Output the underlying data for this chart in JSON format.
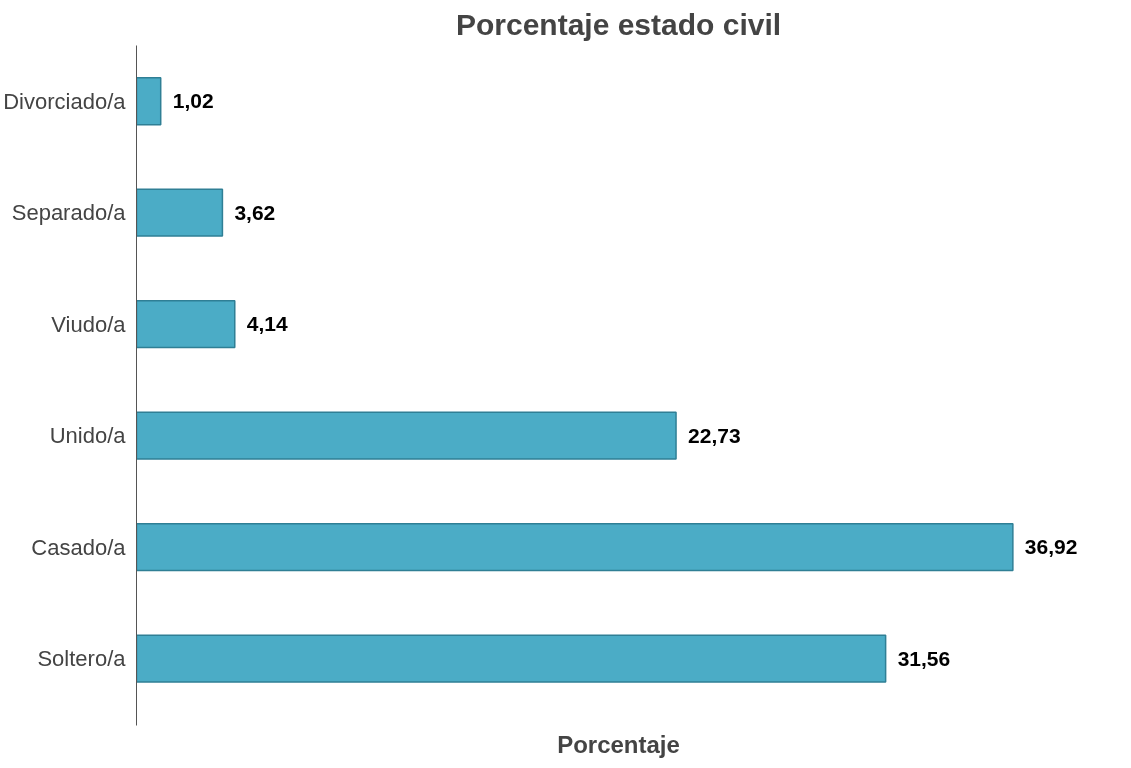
{
  "chart_data": {
    "type": "bar",
    "orientation": "horizontal",
    "title": "Porcentaje estado civil",
    "xlabel": "Porcentaje",
    "categories": [
      "Divorciado/a",
      "Separado/a",
      "Viudo/a",
      "Unido/a",
      "Casado/a",
      "Soltero/a"
    ],
    "values": [
      1.02,
      3.62,
      4.14,
      22.73,
      36.92,
      31.56
    ],
    "value_labels": [
      "1,02",
      "3,62",
      "4,14",
      "22,73",
      "36,92",
      "31,56"
    ],
    "color": "#4bacc6",
    "tick_labels": "y",
    "grid": false
  }
}
